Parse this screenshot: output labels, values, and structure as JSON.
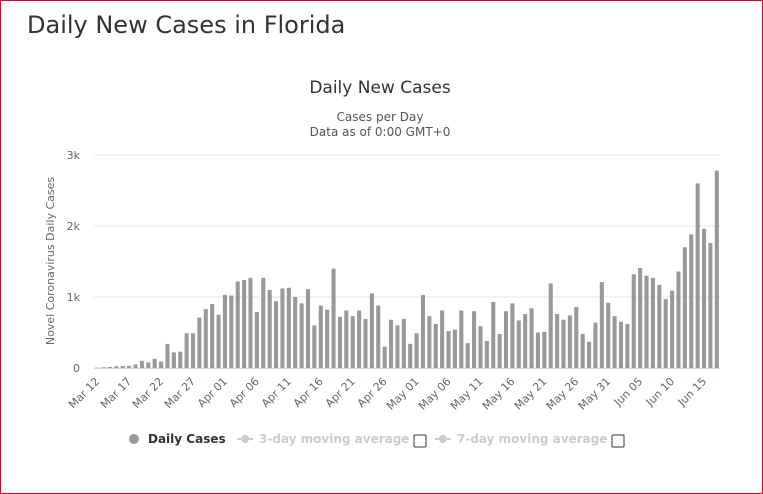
{
  "page_title": "Daily New Cases in Florida",
  "chart_data": {
    "type": "bar",
    "title": "Daily New Cases",
    "subtitle": [
      "Cases per Day",
      "Data as of 0:00 GMT+0"
    ],
    "y_label": "Novel Coronavirus Daily Cases",
    "categories": [
      "Mar 12",
      null,
      null,
      null,
      null,
      "Mar 17",
      null,
      null,
      null,
      null,
      "Mar 22",
      null,
      null,
      null,
      null,
      "Mar 27",
      null,
      null,
      null,
      null,
      "Apr 01",
      null,
      null,
      null,
      null,
      "Apr 06",
      null,
      null,
      null,
      null,
      "Apr 11",
      null,
      null,
      null,
      null,
      "Apr 16",
      null,
      null,
      null,
      null,
      "Apr 21",
      null,
      null,
      null,
      null,
      "Apr 26",
      null,
      null,
      null,
      null,
      "May 01",
      null,
      null,
      null,
      null,
      "May 06",
      null,
      null,
      null,
      null,
      "May 11",
      null,
      null,
      null,
      null,
      "May 16",
      null,
      null,
      null,
      null,
      "May 21",
      null,
      null,
      null,
      null,
      "May 26",
      null,
      null,
      null,
      null,
      "May 31",
      null,
      null,
      null,
      null,
      "Jun 05",
      null,
      null,
      null,
      null,
      "Jun 10",
      null,
      null,
      null,
      null,
      "Jun 15",
      null,
      null
    ],
    "series": [
      {
        "name": "Daily Cases",
        "color": "#999999",
        "values": [
          5,
          10,
          15,
          25,
          30,
          30,
          50,
          100,
          80,
          130,
          90,
          340,
          220,
          230,
          490,
          490,
          710,
          830,
          900,
          750,
          1030,
          1020,
          1220,
          1240,
          1270,
          790,
          1270,
          1100,
          940,
          1120,
          1130,
          1000,
          910,
          1110,
          600,
          880,
          820,
          1400,
          720,
          810,
          730,
          810,
          690,
          1050,
          880,
          300,
          680,
          600,
          690,
          340,
          490,
          1030,
          730,
          620,
          810,
          520,
          540,
          810,
          350,
          800,
          590,
          380,
          930,
          480,
          800,
          910,
          670,
          760,
          840,
          500,
          510,
          1190,
          760,
          680,
          740,
          860,
          480,
          370,
          640,
          1210,
          920,
          730,
          650,
          620,
          1320,
          1410,
          1300,
          1270,
          1170,
          970,
          1090,
          1360,
          1700,
          1880,
          2600,
          1960,
          1760,
          2780
        ]
      }
    ],
    "hidden_legend": [
      "3-day moving average",
      "7-day moving average"
    ],
    "ylim": [
      0,
      3000
    ],
    "yticks": [
      0,
      {
        "value": 1000,
        "label": "1k"
      },
      {
        "value": 2000,
        "label": "2k"
      },
      {
        "value": 3000,
        "label": "3k"
      }
    ],
    "grid": true
  }
}
